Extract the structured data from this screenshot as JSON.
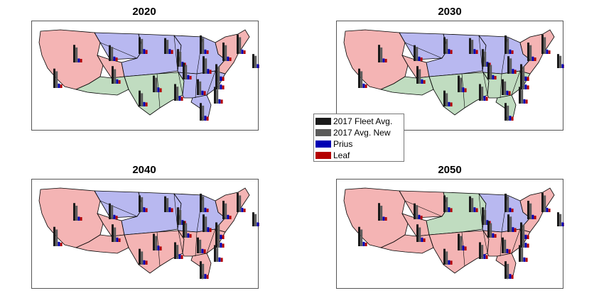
{
  "colors": {
    "fleet": "#1a1a1a",
    "new": "#5a5a5a",
    "prius": "#0000b4",
    "leaf": "#b40000",
    "red_region": "#f4b4b4",
    "blue_region": "#b8b8f0",
    "green_region": "#c0dcc0"
  },
  "legend": {
    "items": [
      {
        "label": "2017 Fleet Avg.",
        "color_key": "fleet"
      },
      {
        "label": "2017 Avg. New",
        "color_key": "new"
      },
      {
        "label": "Prius",
        "color_key": "prius"
      },
      {
        "label": "Leaf",
        "color_key": "leaf"
      }
    ]
  },
  "panels": [
    {
      "title": "2020",
      "regions": {
        "west": "red",
        "mountain_north": "blue",
        "mountain_south": "red",
        "plains": "blue",
        "south_central": "green",
        "southwest": "green",
        "midwest": "blue",
        "southeast": "blue",
        "northeast": "red",
        "florida": "blue"
      }
    },
    {
      "title": "2030",
      "regions": {
        "west": "red",
        "mountain_north": "blue",
        "mountain_south": "red",
        "plains": "blue",
        "south_central": "green",
        "southwest": "green",
        "midwest": "blue",
        "southeast": "green",
        "northeast": "red",
        "florida": "green"
      }
    },
    {
      "title": "2040",
      "regions": {
        "west": "red",
        "mountain_north": "blue",
        "mountain_south": "red",
        "plains": "blue",
        "south_central": "red",
        "southwest": "red",
        "midwest": "blue",
        "southeast": "red",
        "northeast": "red",
        "florida": "red"
      }
    },
    {
      "title": "2050",
      "regions": {
        "west": "red",
        "mountain_north": "red",
        "mountain_south": "red",
        "plains": "green",
        "south_central": "red",
        "southwest": "red",
        "midwest": "blue",
        "southeast": "red",
        "northeast": "red",
        "florida": "red"
      }
    }
  ],
  "bar_groups": [
    {
      "region": "northwest",
      "values": [
        40,
        34,
        9,
        8
      ]
    },
    {
      "region": "california",
      "values": [
        44,
        38,
        10,
        8
      ]
    },
    {
      "region": "montana",
      "values": [
        36,
        32,
        10,
        8
      ]
    },
    {
      "region": "colorado",
      "values": [
        40,
        33,
        10,
        8
      ]
    },
    {
      "region": "north-dakota",
      "values": [
        38,
        34,
        11,
        9
      ]
    },
    {
      "region": "minnesota",
      "values": [
        36,
        32,
        11,
        9
      ]
    },
    {
      "region": "iowa",
      "values": [
        40,
        34,
        11,
        9
      ]
    },
    {
      "region": "kansas",
      "values": [
        38,
        33,
        11,
        9
      ]
    },
    {
      "region": "texas",
      "values": [
        36,
        30,
        10,
        9
      ]
    },
    {
      "region": "louisiana",
      "values": [
        38,
        32,
        11,
        9
      ]
    },
    {
      "region": "michigan",
      "values": [
        42,
        36,
        10,
        8
      ]
    },
    {
      "region": "illinois",
      "values": [
        38,
        33,
        10,
        8
      ]
    },
    {
      "region": "ohio",
      "values": [
        40,
        35,
        11,
        9
      ]
    },
    {
      "region": "tennessee",
      "values": [
        36,
        31,
        10,
        9
      ]
    },
    {
      "region": "georgia",
      "values": [
        38,
        32,
        10,
        9
      ]
    },
    {
      "region": "florida",
      "values": [
        40,
        34,
        11,
        9
      ]
    },
    {
      "region": "new-york",
      "values": [
        42,
        36,
        10,
        8
      ]
    },
    {
      "region": "pennsylvania",
      "values": [
        38,
        33,
        10,
        9
      ]
    },
    {
      "region": "virginia",
      "values": [
        36,
        32,
        11,
        9
      ]
    },
    {
      "region": "new-england",
      "values": [
        44,
        38,
        10,
        8
      ]
    },
    {
      "region": "maine",
      "values": [
        32,
        28,
        9,
        8
      ]
    }
  ]
}
